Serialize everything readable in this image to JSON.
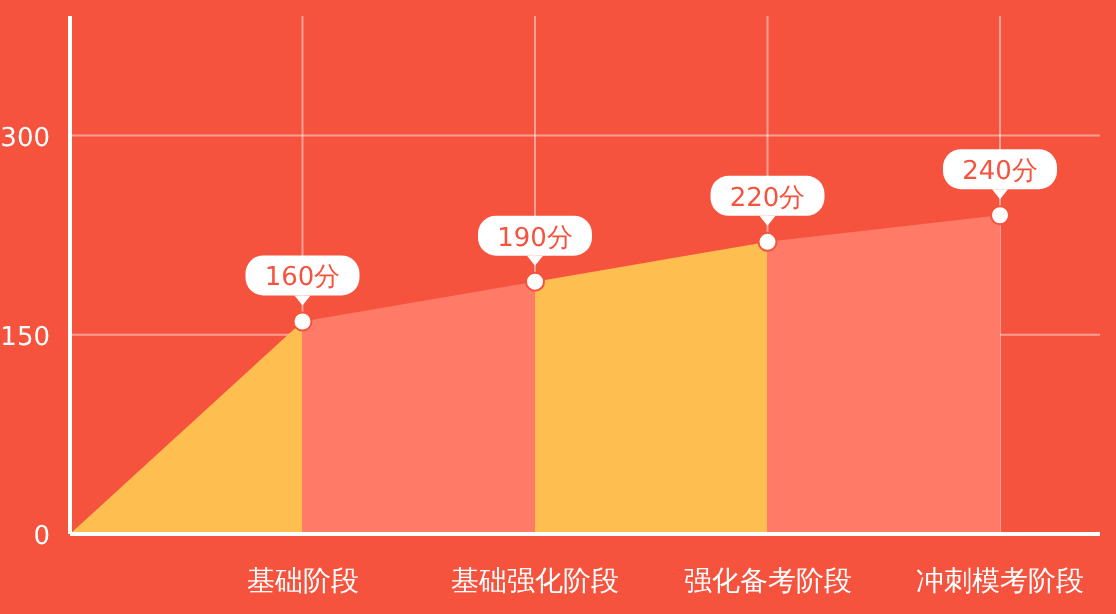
{
  "chart_data": {
    "type": "area",
    "categories": [
      null,
      "基础阶段",
      "基础强化阶段",
      "强化备考阶段",
      "冲刺模考阶段"
    ],
    "values": [
      0,
      160,
      190,
      220,
      240
    ],
    "value_labels": [
      null,
      "160分",
      "190分",
      "220分",
      "240分"
    ],
    "colors": [
      "#ffbe50",
      "#ffbe50",
      "#ff7b68",
      "#ffbe50",
      "#ff7b68"
    ],
    "ylim": [
      0,
      390
    ],
    "yticks": [
      0,
      150,
      300
    ],
    "grid": true,
    "marker": "circle"
  }
}
